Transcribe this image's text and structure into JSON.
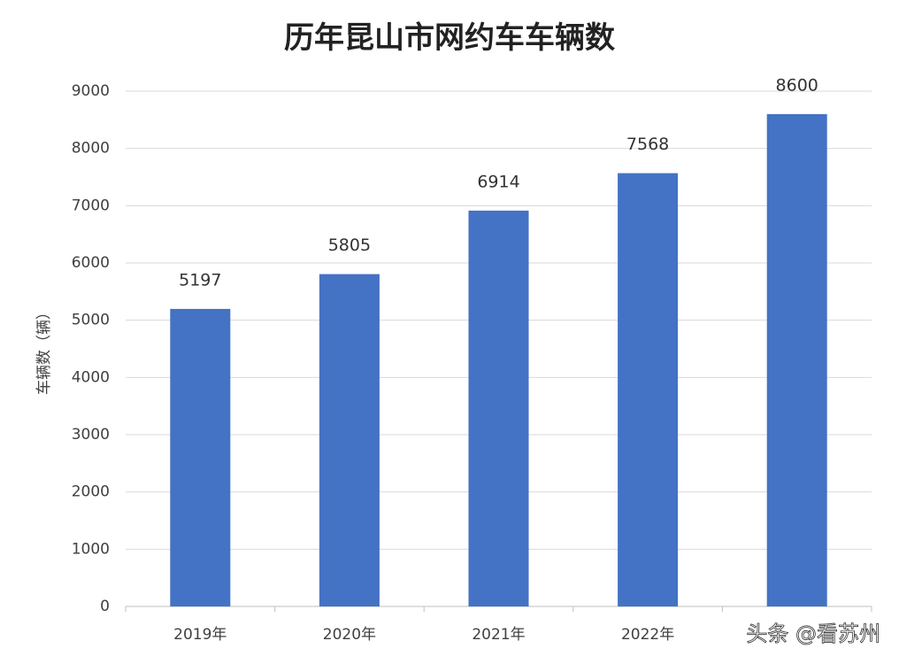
{
  "chart_data": {
    "type": "bar",
    "title": "历年昆山市网约车车辆数",
    "y_label": "车辆数（辆）",
    "categories": [
      "2019年",
      "2020年",
      "2021年",
      "2022年",
      null
    ],
    "values": [
      5197,
      5805,
      6914,
      7568,
      8600
    ],
    "color": "#4472c4",
    "ylim": [
      0,
      9000
    ],
    "yticks": [
      0,
      1000,
      2000,
      3000,
      4000,
      5000,
      6000,
      7000,
      8000,
      9000
    ],
    "grid": true,
    "watermark": "头条 @看苏州"
  }
}
